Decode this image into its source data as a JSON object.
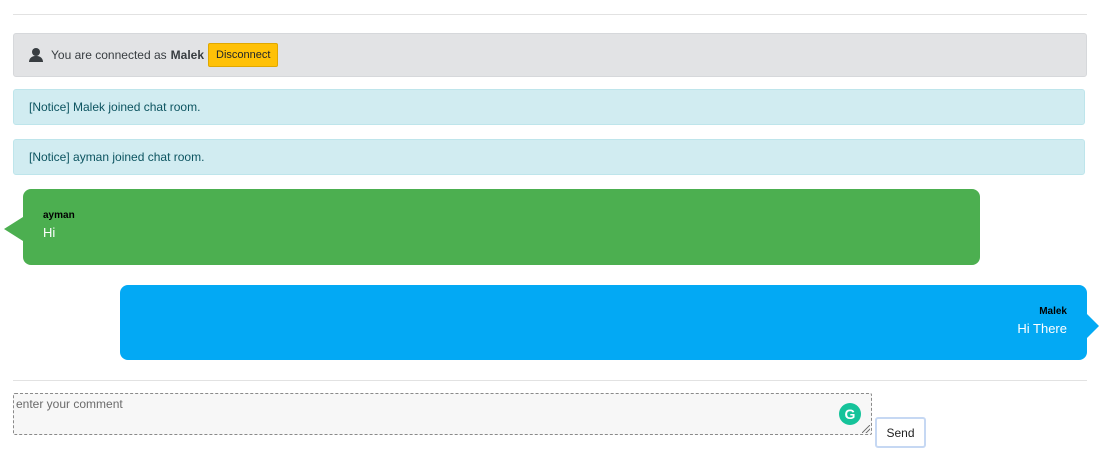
{
  "connection": {
    "prefix": "You are connected as",
    "user": "Malek",
    "disconnect_label": "Disconnect"
  },
  "notices": [
    "[Notice] Malek joined chat room.",
    "[Notice] ayman joined chat room."
  ],
  "messages": [
    {
      "sender": "ayman",
      "text": "Hi",
      "side": "left",
      "color": "#4caf50"
    },
    {
      "sender": "Malek",
      "text": "Hi There",
      "side": "right",
      "color": "#03a9f4"
    }
  ],
  "composer": {
    "placeholder": "enter your comment",
    "value": "",
    "send_label": "Send"
  },
  "colors": {
    "accent_warning": "#ffc107",
    "notice_bg": "#d1ecf1",
    "connection_bg": "#e2e3e5"
  },
  "icons": {
    "user": "user-icon",
    "grammarly": "grammarly-icon"
  }
}
